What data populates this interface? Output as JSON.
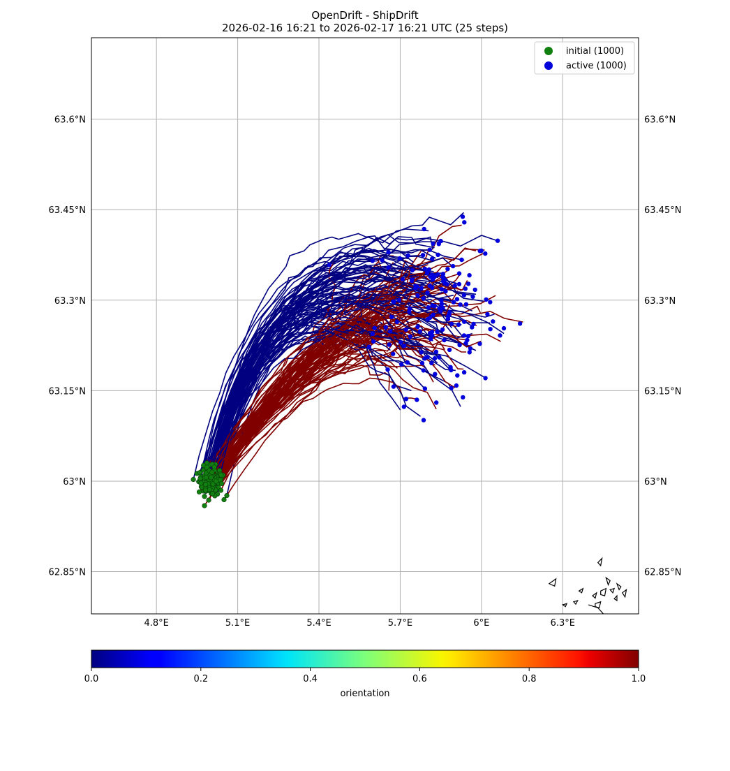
{
  "title": "OpenDrift - ShipDrift",
  "subtitle": "2026-02-16 16:21 to 2026-02-17 16:21 UTC (25 steps)",
  "legend": [
    {
      "label": "initial (1000)",
      "color": "#118011"
    },
    {
      "label": "active (1000)",
      "color": "#0000dd"
    }
  ],
  "colorbar": {
    "label": "orientation",
    "ticks": [
      "0.0",
      "0.2",
      "0.4",
      "0.6",
      "0.8",
      "1.0"
    ],
    "colormap": "jet"
  },
  "chart_data": {
    "type": "scatter",
    "title": "OpenDrift - ShipDrift",
    "subtitle": "2026-02-16 16:21 to 2026-02-17 16:21 UTC (25 steps)",
    "xlim": [
      4.56,
      6.58
    ],
    "ylim": [
      62.78,
      63.735
    ],
    "x_ticks": [
      {
        "value": 4.8,
        "label": "4.8°E"
      },
      {
        "value": 5.1,
        "label": "5.1°E"
      },
      {
        "value": 5.4,
        "label": "5.4°E"
      },
      {
        "value": 5.7,
        "label": "5.7°E"
      },
      {
        "value": 6.0,
        "label": "6°E"
      },
      {
        "value": 6.3,
        "label": "6.3°E"
      }
    ],
    "y_ticks": [
      {
        "value": 63.6,
        "label": "63.6°N"
      },
      {
        "value": 63.45,
        "label": "63.45°N"
      },
      {
        "value": 63.3,
        "label": "63.3°N"
      },
      {
        "value": 63.15,
        "label": "63.15°N"
      },
      {
        "value": 63.0,
        "label": "63°N"
      },
      {
        "value": 62.85,
        "label": "62.85°N"
      }
    ],
    "grid": true,
    "legend_position": "top-right",
    "series": [
      {
        "name": "initial (1000)",
        "color": "#118011",
        "center": [
          5.0,
          63.0
        ],
        "spread": [
          0.04,
          0.02
        ],
        "count": 1000
      },
      {
        "name": "active (1000)",
        "color": "#0000dd",
        "center": [
          5.83,
          63.28
        ],
        "spread": [
          0.15,
          0.08
        ],
        "count": 1000
      }
    ],
    "trajectory_colors": {
      "orientation_0": "#000080",
      "orientation_1": "#800000"
    }
  }
}
